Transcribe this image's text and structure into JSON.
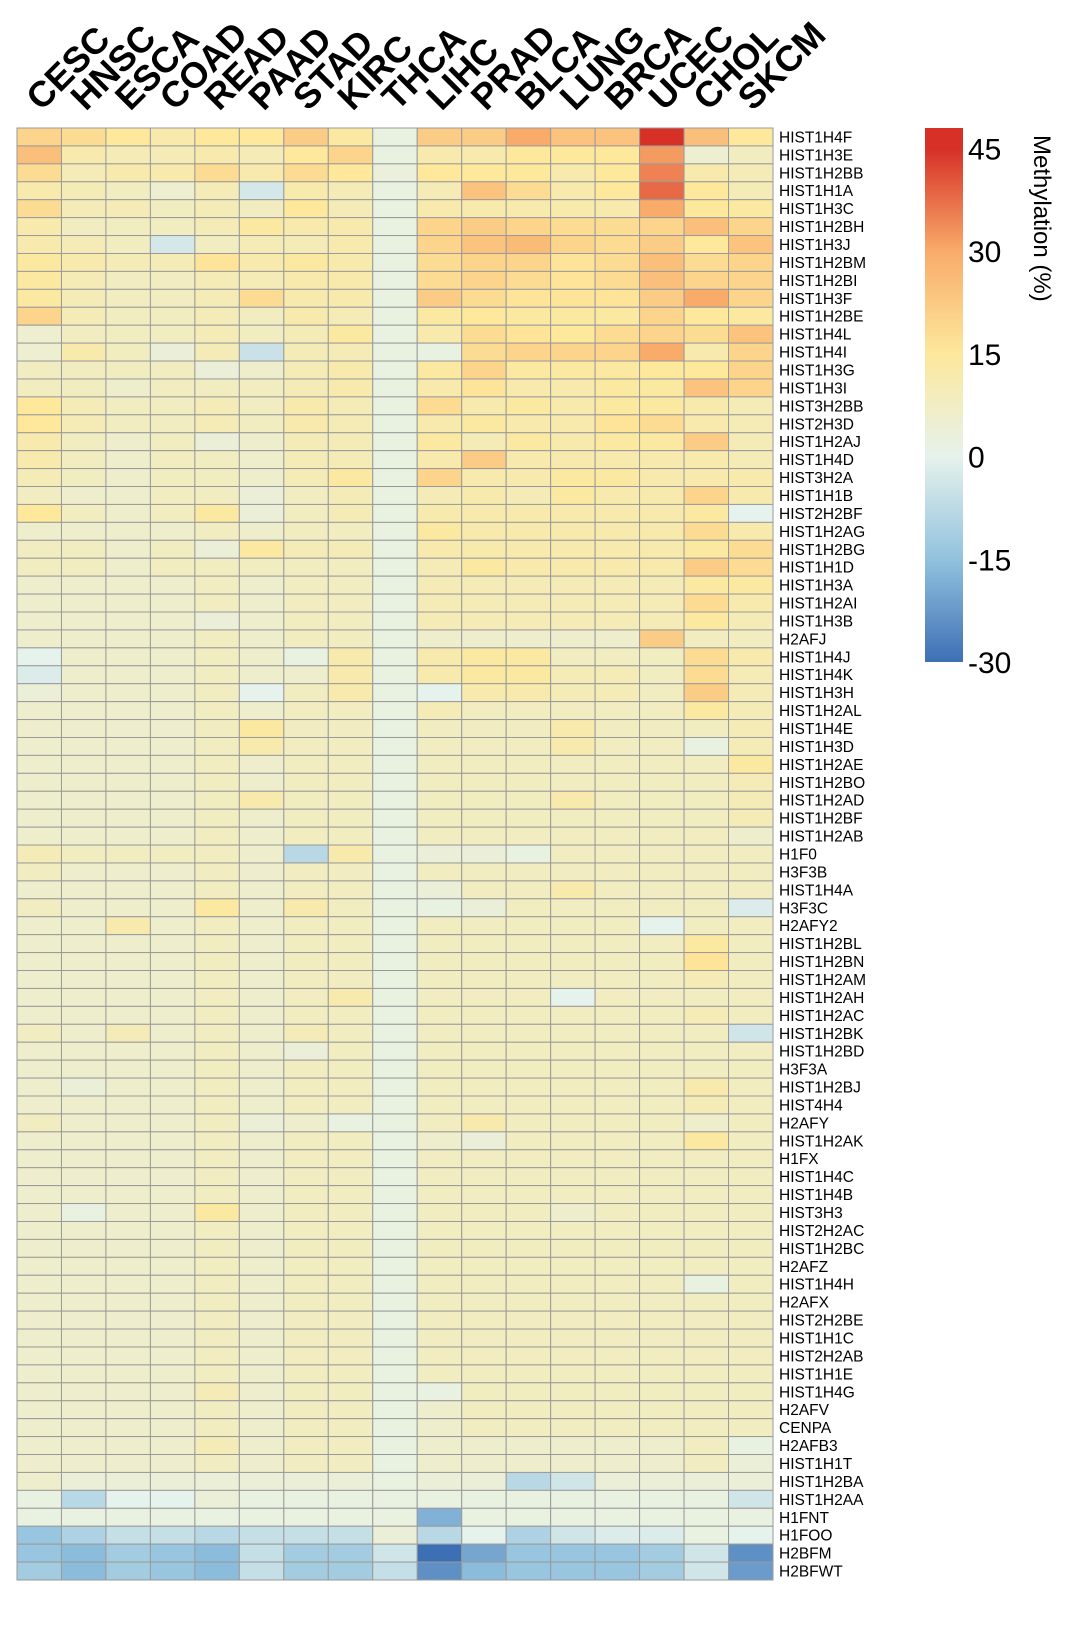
{
  "chart_data": {
    "type": "heatmap",
    "columns": [
      "CESC",
      "HNSC",
      "ESCA",
      "COAD",
      "READ",
      "PAAD",
      "STAD",
      "KIRC",
      "THCA",
      "LIHC",
      "PRAD",
      "BLCA",
      "LUNG",
      "BRCA",
      "UCEC",
      "CHOL",
      "SKCM"
    ],
    "rows": [
      "HIST1H4F",
      "HIST1H3E",
      "HIST1H2BB",
      "HIST1H1A",
      "HIST1H3C",
      "HIST1H2BH",
      "HIST1H3J",
      "HIST1H2BM",
      "HIST1H2BI",
      "HIST1H3F",
      "HIST1H2BE",
      "HIST1H4L",
      "HIST1H4I",
      "HIST1H3G",
      "HIST1H3I",
      "HIST3H2BB",
      "HIST2H3D",
      "HIST1H2AJ",
      "HIST1H4D",
      "HIST3H2A",
      "HIST1H1B",
      "HIST2H2BF",
      "HIST1H2AG",
      "HIST1H2BG",
      "HIST1H1D",
      "HIST1H3A",
      "HIST1H2AI",
      "HIST1H3B",
      "H2AFJ",
      "HIST1H4J",
      "HIST1H4K",
      "HIST1H3H",
      "HIST1H2AL",
      "HIST1H4E",
      "HIST1H3D",
      "HIST1H2AE",
      "HIST1H2BO",
      "HIST1H2AD",
      "HIST1H2BF",
      "HIST1H2AB",
      "H1F0",
      "H3F3B",
      "HIST1H4A",
      "H3F3C",
      "H2AFY2",
      "HIST1H2BL",
      "HIST1H2BN",
      "HIST1H2AM",
      "HIST1H2AH",
      "HIST1H2AC",
      "HIST1H2BK",
      "HIST1H2BD",
      "H3F3A",
      "HIST1H2BJ",
      "HIST4H4",
      "H2AFY",
      "HIST1H2AK",
      "H1FX",
      "HIST1H4C",
      "HIST1H4B",
      "HIST3H3",
      "HIST2H2AC",
      "HIST1H2BC",
      "H2AFZ",
      "HIST1H4H",
      "H2AFX",
      "HIST2H2BE",
      "HIST1H1C",
      "HIST2H2AB",
      "HIST1H1E",
      "HIST1H4G",
      "H2AFV",
      "CENPA",
      "H2AFB3",
      "HIST1H1T",
      "HIST1H2BA",
      "HIST1H2AA",
      "H1FNT",
      "H1FOO",
      "H2BFM",
      "H2BFWT"
    ],
    "values": [
      [
        20,
        18,
        15,
        12,
        15,
        15,
        22,
        14,
        2,
        22,
        22,
        30,
        24,
        24,
        45,
        25,
        15
      ],
      [
        25,
        12,
        10,
        10,
        12,
        10,
        15,
        20,
        2,
        12,
        12,
        15,
        15,
        15,
        32,
        5,
        8
      ],
      [
        18,
        10,
        12,
        12,
        18,
        12,
        18,
        15,
        3,
        15,
        15,
        15,
        12,
        15,
        35,
        12,
        10
      ],
      [
        12,
        10,
        8,
        5,
        10,
        -3,
        12,
        10,
        2,
        10,
        24,
        18,
        12,
        15,
        38,
        15,
        10
      ],
      [
        18,
        10,
        10,
        8,
        10,
        8,
        15,
        10,
        2,
        12,
        12,
        12,
        12,
        12,
        30,
        15,
        14
      ],
      [
        12,
        8,
        8,
        8,
        10,
        14,
        12,
        12,
        2,
        20,
        22,
        20,
        18,
        18,
        20,
        25,
        20
      ],
      [
        12,
        10,
        8,
        -3,
        8,
        10,
        10,
        12,
        2,
        20,
        24,
        26,
        20,
        18,
        22,
        15,
        24
      ],
      [
        14,
        12,
        10,
        10,
        16,
        12,
        14,
        12,
        2,
        18,
        20,
        20,
        16,
        18,
        25,
        18,
        20
      ],
      [
        14,
        10,
        8,
        8,
        10,
        10,
        12,
        12,
        2,
        18,
        20,
        18,
        16,
        18,
        25,
        20,
        20
      ],
      [
        14,
        10,
        8,
        8,
        10,
        18,
        12,
        12,
        2,
        22,
        18,
        16,
        16,
        16,
        22,
        30,
        20
      ],
      [
        20,
        10,
        8,
        8,
        10,
        8,
        12,
        10,
        2,
        14,
        15,
        14,
        14,
        14,
        20,
        15,
        14
      ],
      [
        5,
        8,
        8,
        8,
        10,
        8,
        10,
        14,
        2,
        12,
        18,
        16,
        15,
        18,
        20,
        18,
        24
      ],
      [
        5,
        12,
        8,
        4,
        10,
        -5,
        10,
        10,
        2,
        2,
        18,
        20,
        20,
        20,
        30,
        12,
        20
      ],
      [
        8,
        8,
        8,
        8,
        4,
        6,
        10,
        12,
        2,
        14,
        20,
        14,
        14,
        14,
        15,
        15,
        20
      ],
      [
        8,
        8,
        6,
        8,
        8,
        8,
        10,
        12,
        2,
        12,
        16,
        12,
        12,
        14,
        14,
        24,
        20
      ],
      [
        15,
        10,
        8,
        8,
        10,
        8,
        12,
        10,
        2,
        18,
        12,
        14,
        12,
        14,
        14,
        12,
        10
      ],
      [
        15,
        10,
        8,
        8,
        10,
        8,
        12,
        10,
        2,
        12,
        14,
        12,
        12,
        16,
        18,
        12,
        10
      ],
      [
        12,
        8,
        6,
        8,
        4,
        6,
        10,
        10,
        2,
        14,
        10,
        14,
        12,
        14,
        14,
        22,
        10
      ],
      [
        12,
        8,
        6,
        8,
        8,
        6,
        10,
        10,
        2,
        12,
        22,
        12,
        12,
        12,
        12,
        12,
        10
      ],
      [
        10,
        8,
        6,
        8,
        8,
        6,
        10,
        14,
        2,
        20,
        12,
        12,
        14,
        14,
        12,
        12,
        12
      ],
      [
        8,
        6,
        6,
        8,
        8,
        4,
        8,
        10,
        2,
        10,
        12,
        10,
        14,
        12,
        12,
        20,
        12
      ],
      [
        15,
        8,
        6,
        8,
        14,
        4,
        8,
        10,
        2,
        12,
        12,
        12,
        12,
        12,
        12,
        14,
        0
      ],
      [
        6,
        6,
        6,
        6,
        8,
        6,
        8,
        8,
        2,
        14,
        12,
        12,
        12,
        12,
        12,
        18,
        12
      ],
      [
        8,
        8,
        6,
        8,
        4,
        14,
        10,
        10,
        2,
        12,
        12,
        12,
        12,
        12,
        12,
        14,
        18
      ],
      [
        8,
        8,
        6,
        8,
        8,
        8,
        8,
        8,
        2,
        10,
        14,
        12,
        12,
        12,
        12,
        22,
        18
      ],
      [
        6,
        6,
        6,
        6,
        8,
        6,
        8,
        8,
        2,
        10,
        10,
        10,
        10,
        10,
        10,
        14,
        14
      ],
      [
        6,
        6,
        6,
        6,
        8,
        6,
        8,
        8,
        2,
        10,
        10,
        10,
        10,
        10,
        10,
        18,
        12
      ],
      [
        6,
        6,
        6,
        6,
        4,
        6,
        8,
        8,
        2,
        10,
        10,
        10,
        10,
        10,
        10,
        14,
        10
      ],
      [
        6,
        6,
        6,
        6,
        8,
        6,
        8,
        8,
        2,
        6,
        6,
        6,
        6,
        6,
        22,
        8,
        8
      ],
      [
        0,
        6,
        6,
        6,
        8,
        6,
        2,
        12,
        2,
        12,
        14,
        14,
        8,
        8,
        8,
        18,
        12
      ],
      [
        -2,
        6,
        6,
        6,
        8,
        6,
        6,
        12,
        2,
        12,
        14,
        14,
        10,
        10,
        8,
        18,
        10
      ],
      [
        4,
        6,
        6,
        6,
        8,
        0,
        8,
        12,
        2,
        0,
        12,
        12,
        10,
        10,
        8,
        22,
        10
      ],
      [
        6,
        6,
        6,
        6,
        8,
        6,
        8,
        8,
        2,
        10,
        8,
        8,
        8,
        8,
        8,
        14,
        10
      ],
      [
        6,
        6,
        6,
        6,
        8,
        14,
        8,
        8,
        2,
        8,
        8,
        8,
        12,
        8,
        8,
        8,
        10
      ],
      [
        6,
        6,
        6,
        6,
        8,
        12,
        8,
        8,
        2,
        8,
        8,
        8,
        12,
        8,
        8,
        2,
        10
      ],
      [
        6,
        6,
        6,
        6,
        8,
        6,
        8,
        8,
        2,
        8,
        8,
        8,
        8,
        8,
        8,
        8,
        14
      ],
      [
        6,
        6,
        6,
        6,
        8,
        6,
        8,
        8,
        2,
        8,
        8,
        8,
        8,
        8,
        8,
        8,
        10
      ],
      [
        6,
        6,
        6,
        6,
        8,
        12,
        8,
        8,
        2,
        8,
        8,
        8,
        12,
        8,
        8,
        8,
        10
      ],
      [
        6,
        6,
        6,
        6,
        8,
        6,
        8,
        8,
        2,
        8,
        8,
        8,
        8,
        8,
        8,
        8,
        10
      ],
      [
        6,
        6,
        6,
        6,
        8,
        6,
        8,
        8,
        2,
        8,
        8,
        8,
        8,
        8,
        8,
        8,
        6
      ],
      [
        10,
        8,
        8,
        8,
        8,
        6,
        -8,
        12,
        2,
        4,
        4,
        2,
        8,
        8,
        8,
        8,
        8
      ],
      [
        8,
        6,
        6,
        6,
        8,
        6,
        8,
        8,
        2,
        8,
        8,
        8,
        8,
        8,
        8,
        8,
        8
      ],
      [
        6,
        6,
        6,
        6,
        8,
        6,
        8,
        8,
        2,
        4,
        8,
        8,
        12,
        8,
        8,
        8,
        8
      ],
      [
        8,
        6,
        6,
        6,
        14,
        6,
        12,
        8,
        2,
        2,
        4,
        8,
        8,
        8,
        8,
        8,
        -2
      ],
      [
        6,
        6,
        12,
        6,
        8,
        6,
        8,
        8,
        2,
        8,
        8,
        8,
        8,
        8,
        0,
        8,
        8
      ],
      [
        6,
        6,
        6,
        6,
        8,
        6,
        8,
        8,
        2,
        8,
        8,
        8,
        8,
        8,
        8,
        14,
        8
      ],
      [
        6,
        6,
        6,
        6,
        8,
        6,
        8,
        8,
        2,
        8,
        8,
        8,
        8,
        8,
        8,
        16,
        8
      ],
      [
        6,
        6,
        6,
        6,
        8,
        6,
        8,
        8,
        2,
        8,
        8,
        8,
        8,
        8,
        8,
        10,
        8
      ],
      [
        6,
        6,
        6,
        6,
        8,
        6,
        8,
        12,
        2,
        8,
        8,
        8,
        0,
        8,
        8,
        8,
        8
      ],
      [
        6,
        6,
        6,
        6,
        8,
        6,
        8,
        8,
        2,
        8,
        8,
        8,
        8,
        8,
        8,
        10,
        8
      ],
      [
        8,
        6,
        10,
        6,
        8,
        6,
        10,
        8,
        2,
        8,
        8,
        8,
        8,
        8,
        8,
        8,
        -4
      ],
      [
        6,
        6,
        6,
        6,
        8,
        6,
        4,
        8,
        2,
        8,
        8,
        8,
        8,
        8,
        8,
        8,
        8
      ],
      [
        6,
        6,
        6,
        6,
        8,
        6,
        8,
        8,
        2,
        8,
        8,
        8,
        8,
        8,
        8,
        8,
        8
      ],
      [
        6,
        4,
        6,
        6,
        8,
        6,
        8,
        8,
        2,
        8,
        8,
        8,
        8,
        8,
        8,
        12,
        8
      ],
      [
        6,
        6,
        6,
        6,
        8,
        6,
        8,
        8,
        2,
        8,
        8,
        8,
        8,
        8,
        8,
        10,
        8
      ],
      [
        8,
        6,
        6,
        6,
        8,
        4,
        6,
        2,
        2,
        8,
        12,
        8,
        8,
        8,
        8,
        6,
        8
      ],
      [
        6,
        6,
        6,
        6,
        8,
        6,
        8,
        8,
        2,
        6,
        4,
        8,
        8,
        8,
        8,
        14,
        8
      ],
      [
        6,
        6,
        6,
        6,
        8,
        6,
        8,
        8,
        2,
        8,
        8,
        8,
        8,
        8,
        8,
        8,
        8
      ],
      [
        6,
        6,
        6,
        6,
        8,
        6,
        8,
        8,
        2,
        8,
        8,
        8,
        8,
        8,
        8,
        8,
        8
      ],
      [
        6,
        6,
        6,
        6,
        8,
        6,
        8,
        8,
        2,
        8,
        8,
        8,
        8,
        8,
        8,
        8,
        8
      ],
      [
        6,
        2,
        6,
        6,
        14,
        6,
        8,
        8,
        2,
        8,
        8,
        8,
        6,
        8,
        8,
        8,
        8
      ],
      [
        6,
        6,
        6,
        6,
        8,
        6,
        8,
        8,
        2,
        8,
        8,
        8,
        8,
        8,
        8,
        8,
        8
      ],
      [
        6,
        6,
        6,
        6,
        8,
        6,
        8,
        8,
        2,
        8,
        8,
        8,
        8,
        8,
        8,
        8,
        8
      ],
      [
        6,
        6,
        6,
        6,
        8,
        6,
        8,
        8,
        2,
        8,
        8,
        8,
        8,
        8,
        8,
        8,
        8
      ],
      [
        6,
        6,
        6,
        6,
        8,
        6,
        8,
        8,
        2,
        8,
        8,
        8,
        8,
        8,
        8,
        2,
        8
      ],
      [
        6,
        6,
        6,
        6,
        8,
        6,
        8,
        8,
        2,
        8,
        8,
        8,
        8,
        8,
        8,
        8,
        8
      ],
      [
        6,
        6,
        6,
        6,
        8,
        6,
        8,
        8,
        2,
        8,
        8,
        8,
        8,
        8,
        8,
        8,
        8
      ],
      [
        6,
        6,
        6,
        6,
        8,
        6,
        8,
        8,
        2,
        8,
        8,
        8,
        8,
        8,
        8,
        8,
        8
      ],
      [
        6,
        6,
        6,
        6,
        8,
        6,
        8,
        8,
        2,
        8,
        8,
        8,
        8,
        8,
        8,
        8,
        8
      ],
      [
        6,
        6,
        6,
        6,
        8,
        6,
        8,
        8,
        2,
        8,
        8,
        8,
        8,
        8,
        8,
        8,
        8
      ],
      [
        6,
        6,
        6,
        6,
        10,
        6,
        8,
        8,
        2,
        2,
        8,
        8,
        8,
        8,
        8,
        8,
        8
      ],
      [
        6,
        6,
        6,
        6,
        8,
        6,
        8,
        8,
        2,
        6,
        8,
        8,
        8,
        8,
        8,
        8,
        8
      ],
      [
        6,
        6,
        6,
        6,
        8,
        6,
        8,
        8,
        2,
        6,
        8,
        8,
        8,
        8,
        8,
        8,
        8
      ],
      [
        6,
        6,
        6,
        6,
        10,
        6,
        8,
        8,
        2,
        6,
        6,
        6,
        6,
        6,
        6,
        8,
        2
      ],
      [
        6,
        6,
        6,
        6,
        8,
        6,
        8,
        8,
        2,
        6,
        6,
        6,
        6,
        6,
        6,
        8,
        4
      ],
      [
        6,
        4,
        4,
        4,
        4,
        4,
        4,
        4,
        2,
        4,
        4,
        -8,
        -4,
        4,
        4,
        4,
        4
      ],
      [
        2,
        -8,
        0,
        0,
        4,
        2,
        2,
        2,
        2,
        2,
        2,
        2,
        2,
        2,
        2,
        2,
        -4
      ],
      [
        2,
        2,
        2,
        2,
        2,
        2,
        2,
        2,
        2,
        -18,
        2,
        2,
        2,
        2,
        2,
        2,
        2
      ],
      [
        -14,
        -10,
        -6,
        -6,
        -8,
        -6,
        -6,
        -6,
        4,
        -8,
        0,
        -10,
        -4,
        -2,
        -2,
        2,
        0
      ],
      [
        -14,
        -16,
        -12,
        -14,
        -16,
        -6,
        -12,
        -12,
        -4,
        -32,
        -20,
        -14,
        -14,
        -14,
        -12,
        -4,
        -24
      ],
      [
        -12,
        -16,
        -12,
        -14,
        -16,
        -6,
        -12,
        -12,
        -6,
        -24,
        -16,
        -14,
        -14,
        -14,
        -12,
        -4,
        -22
      ]
    ],
    "color_scale": {
      "stops": [
        {
          "value": -30,
          "color": "#3d6fb5"
        },
        {
          "value": -15,
          "color": "#92c2de"
        },
        {
          "value": 0,
          "color": "#e6f2ec"
        },
        {
          "value": 15,
          "color": "#fde89c"
        },
        {
          "value": 30,
          "color": "#f9ab6a"
        },
        {
          "value": 45,
          "color": "#d73027"
        }
      ],
      "ticks": [
        "45",
        "30",
        "15",
        "0",
        "-15",
        "-30"
      ],
      "range": [
        -30,
        48
      ],
      "title": "Methylation (%)"
    },
    "grid_color": "#9a9a9a",
    "legend_position": "right"
  }
}
